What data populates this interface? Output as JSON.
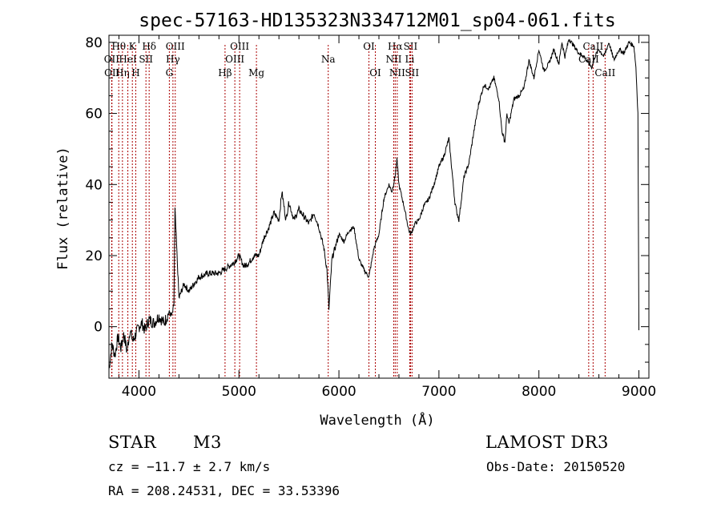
{
  "chart_data": {
    "type": "line",
    "title": "spec-57163-HD135323N334712M01_sp04-061.fits",
    "xlabel": "Wavelength (Å)",
    "ylabel": "Flux (relative)",
    "xlim": [
      3700,
      9100
    ],
    "ylim": [
      -14.5,
      82
    ],
    "x_ticks": [
      4000,
      5000,
      6000,
      7000,
      8000,
      9000
    ],
    "y_ticks": [
      0,
      20,
      40,
      60,
      80
    ],
    "x_minor_step": 200,
    "y_minor_step": 5,
    "series": [
      {
        "name": "spectrum",
        "x": [
          3700,
          3730,
          3760,
          3790,
          3820,
          3850,
          3880,
          3910,
          3940,
          3970,
          4000,
          4030,
          4060,
          4100,
          4150,
          4200,
          4250,
          4300,
          4330,
          4350,
          4360,
          4400,
          4450,
          4500,
          4600,
          4700,
          4800,
          4900,
          4950,
          5000,
          5050,
          5100,
          5150,
          5200,
          5250,
          5300,
          5350,
          5400,
          5430,
          5470,
          5500,
          5550,
          5600,
          5650,
          5700,
          5750,
          5800,
          5850,
          5880,
          5900,
          5930,
          5960,
          6000,
          6050,
          6100,
          6150,
          6200,
          6250,
          6300,
          6350,
          6400,
          6450,
          6500,
          6530,
          6560,
          6580,
          6600,
          6650,
          6700,
          6720,
          6760,
          6800,
          6850,
          6900,
          6950,
          7000,
          7050,
          7100,
          7130,
          7160,
          7180,
          7200,
          7250,
          7300,
          7350,
          7400,
          7450,
          7500,
          7550,
          7600,
          7630,
          7660,
          7680,
          7700,
          7750,
          7800,
          7850,
          7900,
          7950,
          8000,
          8050,
          8100,
          8150,
          8200,
          8230,
          8260,
          8300,
          8350,
          8400,
          8450,
          8500,
          8530,
          8560,
          8600,
          8650,
          8700,
          8750,
          8800,
          8850,
          8900,
          8950,
          8970,
          8990,
          9000
        ],
        "y": [
          -12,
          -5,
          -8,
          -3,
          -6,
          -2,
          -7,
          -1,
          -4,
          -2,
          0,
          1,
          -1,
          2,
          1,
          3,
          1,
          4,
          3,
          6,
          33,
          8,
          12,
          10,
          14,
          15,
          15,
          17,
          18,
          20,
          17,
          18,
          20,
          20,
          25,
          28,
          32,
          30,
          38,
          30,
          35,
          30,
          33,
          31,
          29,
          32,
          28,
          22,
          16,
          5,
          19,
          22,
          26,
          24,
          27,
          28,
          19,
          16,
          14,
          22,
          26,
          36,
          40,
          38,
          42,
          47,
          40,
          34,
          27,
          26,
          29,
          30,
          34,
          36,
          40,
          45,
          48,
          53,
          44,
          35,
          32,
          30,
          42,
          46,
          55,
          63,
          68,
          67,
          70,
          64,
          55,
          52,
          60,
          57,
          64,
          65,
          67,
          75,
          70,
          78,
          72,
          74,
          78,
          74,
          80,
          76,
          81,
          79,
          77,
          76,
          74,
          73,
          76,
          78,
          76,
          80,
          75,
          78,
          77,
          80,
          79,
          73,
          60,
          -1
        ],
        "points_approx": "sampled from plot"
      }
    ],
    "annotations": [
      {
        "label": "Hθ",
        "wavelength": 3798,
        "row": 0
      },
      {
        "label": "OII",
        "wavelength": 3727,
        "row": 1
      },
      {
        "label": "OII",
        "wavelength": 3730,
        "row": 2
      },
      {
        "label": "Hη",
        "wavelength": 3835,
        "row": 2
      },
      {
        "label": "K",
        "wavelength": 3934,
        "row": 0
      },
      {
        "label": "HeI",
        "wavelength": 3889,
        "row": 1
      },
      {
        "label": "H",
        "wavelength": 3968,
        "row": 2
      },
      {
        "label": "Hδ",
        "wavelength": 4102,
        "row": 0
      },
      {
        "label": "SII",
        "wavelength": 4070,
        "row": 1
      },
      {
        "label": "OIII",
        "wavelength": 4363,
        "row": 0
      },
      {
        "label": "Hγ",
        "wavelength": 4340,
        "row": 1
      },
      {
        "label": "G",
        "wavelength": 4304,
        "row": 2
      },
      {
        "label": "OIII",
        "wavelength": 5007,
        "row": 0
      },
      {
        "label": "OIII",
        "wavelength": 4959,
        "row": 1
      },
      {
        "label": "Hβ",
        "wavelength": 4861,
        "row": 2
      },
      {
        "label": "Mg",
        "wavelength": 5175,
        "row": 2
      },
      {
        "label": "Na",
        "wavelength": 5893,
        "row": 1
      },
      {
        "label": "OI",
        "wavelength": 6300,
        "row": 0
      },
      {
        "label": "OI",
        "wavelength": 6364,
        "row": 2
      },
      {
        "label": "Hα",
        "wavelength": 6563,
        "row": 0
      },
      {
        "label": "SII",
        "wavelength": 6716,
        "row": 0
      },
      {
        "label": "NII",
        "wavelength": 6548,
        "row": 1
      },
      {
        "label": "Li",
        "wavelength": 6708,
        "row": 1
      },
      {
        "label": "NII",
        "wavelength": 6583,
        "row": 2
      },
      {
        "label": "SII",
        "wavelength": 6731,
        "row": 2
      },
      {
        "label": "CaII",
        "wavelength": 8542,
        "row": 0
      },
      {
        "label": "CaII",
        "wavelength": 8498,
        "row": 1
      },
      {
        "label": "CaII",
        "wavelength": 8662,
        "row": 2
      }
    ],
    "line_color": "#000000",
    "marker_color": "#aa0000"
  },
  "info": {
    "object_type": "STAR",
    "subclass": "M3",
    "survey": "LAMOST DR3",
    "redshift_line": "cz = −11.7 ± 2.7 km/s",
    "obs_date": "Obs-Date: 20150520",
    "coords": "RA = 208.24531, DEC =  33.53396"
  }
}
